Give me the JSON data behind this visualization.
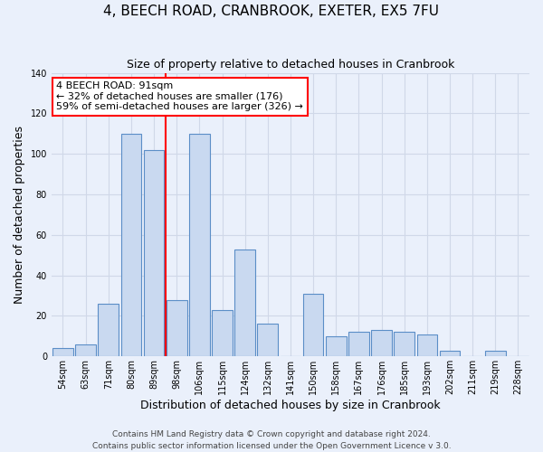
{
  "title": "4, BEECH ROAD, CRANBROOK, EXETER, EX5 7FU",
  "subtitle": "Size of property relative to detached houses in Cranbrook",
  "xlabel": "Distribution of detached houses by size in Cranbrook",
  "ylabel": "Number of detached properties",
  "bar_labels": [
    "54sqm",
    "63sqm",
    "71sqm",
    "80sqm",
    "89sqm",
    "98sqm",
    "106sqm",
    "115sqm",
    "124sqm",
    "132sqm",
    "141sqm",
    "150sqm",
    "158sqm",
    "167sqm",
    "176sqm",
    "185sqm",
    "193sqm",
    "202sqm",
    "211sqm",
    "219sqm",
    "228sqm"
  ],
  "bar_values": [
    4,
    6,
    26,
    110,
    102,
    28,
    110,
    23,
    53,
    16,
    0,
    31,
    10,
    12,
    13,
    12,
    11,
    3,
    0,
    3,
    0
  ],
  "bar_color": "#c9d9f0",
  "bar_edge_color": "#5b8ec7",
  "grid_color": "#d0d8e8",
  "background_color": "#eaf0fb",
  "vline_color": "red",
  "vline_position": 4.5,
  "annotation_title": "4 BEECH ROAD: 91sqm",
  "annotation_line1": "← 32% of detached houses are smaller (176)",
  "annotation_line2": "59% of semi-detached houses are larger (326) →",
  "annotation_box_color": "white",
  "annotation_box_edge_color": "red",
  "ylim": [
    0,
    140
  ],
  "yticks": [
    0,
    20,
    40,
    60,
    80,
    100,
    120,
    140
  ],
  "footer1": "Contains HM Land Registry data © Crown copyright and database right 2024.",
  "footer2": "Contains public sector information licensed under the Open Government Licence v 3.0.",
  "title_fontsize": 11,
  "subtitle_fontsize": 9,
  "xlabel_fontsize": 9,
  "ylabel_fontsize": 9,
  "tick_fontsize": 7,
  "annotation_fontsize": 8,
  "footer_fontsize": 6.5
}
